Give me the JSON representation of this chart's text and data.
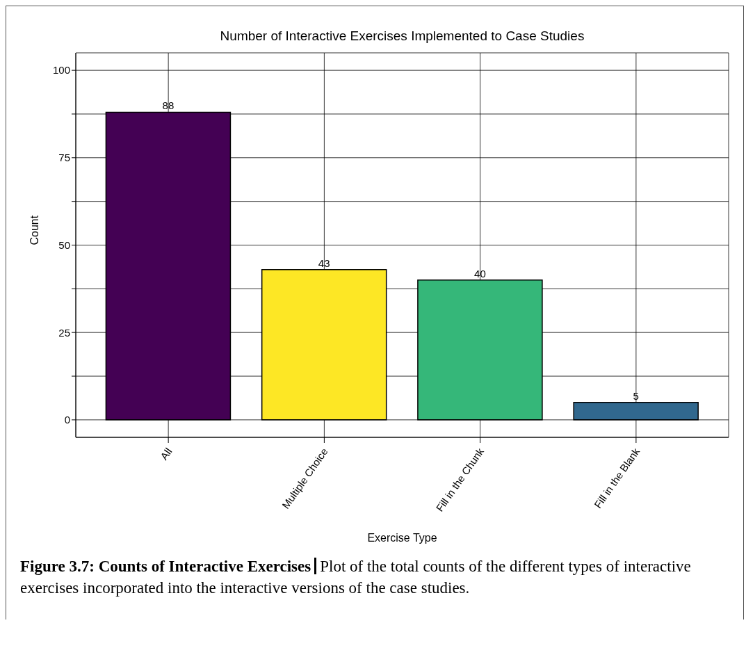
{
  "chart_data": {
    "type": "bar",
    "title": "Number of Interactive Exercises Implemented to Case Studies",
    "xlabel": "Exercise Type",
    "ylabel": "Count",
    "categories": [
      "All",
      "Multiple Choice",
      "Fill in the Chunk",
      "Fill in the Blank"
    ],
    "values": [
      88,
      43,
      40,
      5
    ],
    "colors": [
      "#440154",
      "#fde725",
      "#35b779",
      "#31688e"
    ],
    "ylim": [
      -5,
      105
    ],
    "yticks": [
      0,
      {
        "value": 12.5,
        "label": null
      },
      25,
      {
        "value": 37.5,
        "label": null
      },
      50,
      {
        "value": 62.5,
        "label": null
      },
      75,
      {
        "value": 87.5,
        "label": null
      },
      100
    ],
    "grid": true,
    "data_labels": true,
    "annotations": [
      "Figure 3.7: Counts of Interactive Exercises",
      "Plot of the total counts of the different types of interactive exercises incorporated into the interactive versions of the case studies."
    ]
  }
}
